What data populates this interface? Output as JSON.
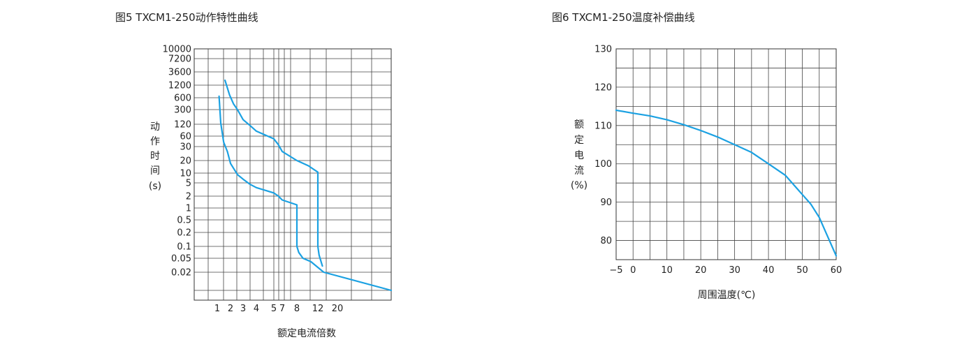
{
  "chart_data": [
    {
      "type": "line",
      "title": "图5 TXCM1-250动作特性曲线",
      "ylabel": "动\n作\n时\n间\n(s)",
      "xlabel": "额定电流倍数",
      "x_tick_labels": [
        "1",
        "2",
        "3",
        "4",
        "5",
        "7",
        "8",
        "12",
        "20"
      ],
      "y_tick_labels": [
        "10000",
        "7200",
        "3600",
        "1200",
        "600",
        "300",
        "120",
        "60",
        "30",
        "20",
        "10",
        "5",
        "2",
        "1",
        "0.5",
        "0.2",
        "0.1",
        "0.05",
        "0.02"
      ],
      "grid": true,
      "series": [
        {
          "x": [
            1.1,
            1.2,
            1.4,
            1.7,
            2.0,
            2.5,
            3.0,
            3.5,
            4.0,
            5.0,
            6.0,
            7.0,
            8.0,
            8.0,
            8.3,
            9.0,
            10.5,
            14.0,
            30.0
          ],
          "y": [
            650,
            130,
            40,
            26,
            17,
            9,
            6.5,
            4.5,
            3.6,
            2.5,
            2.0,
            1.6,
            1.2,
            0.1,
            0.07,
            0.05,
            0.04,
            0.02,
            0.01
          ]
        },
        {
          "x": [
            1.5,
            1.9,
            2.2,
            2.5,
            3.0,
            3.5,
            4.0,
            5.0,
            6.0,
            7.0,
            8.0,
            10.0,
            12.0,
            12.0,
            12.4,
            13.5
          ],
          "y": [
            1800,
            700,
            420,
            300,
            160,
            110,
            80,
            50,
            34,
            26,
            20,
            15,
            10.5,
            0.1,
            0.06,
            0.03
          ]
        }
      ]
    },
    {
      "type": "line",
      "title": "图6 TXCM1-250温度补偿曲线",
      "ylabel": "额\n定\n电\n流\n(%)",
      "xlabel": "周围温度(℃)",
      "x_tick_labels": [
        "−5",
        "0",
        "10",
        "20",
        "30",
        "40",
        "50",
        "60"
      ],
      "y_tick_labels": [
        "130",
        "120",
        "110",
        "100",
        "90",
        "80"
      ],
      "xlim": [
        -5,
        60
      ],
      "ylim": [
        75,
        130
      ],
      "grid": true,
      "series": [
        {
          "x": [
            -5,
            0,
            5,
            10,
            15,
            20,
            25,
            30,
            35,
            40,
            45,
            50,
            52.5,
            55,
            57.5,
            60
          ],
          "y": [
            114,
            113.2,
            112.5,
            111.5,
            110.2,
            108.7,
            107,
            105,
            103,
            100,
            97,
            92,
            89.5,
            86,
            81,
            76
          ]
        }
      ]
    }
  ]
}
